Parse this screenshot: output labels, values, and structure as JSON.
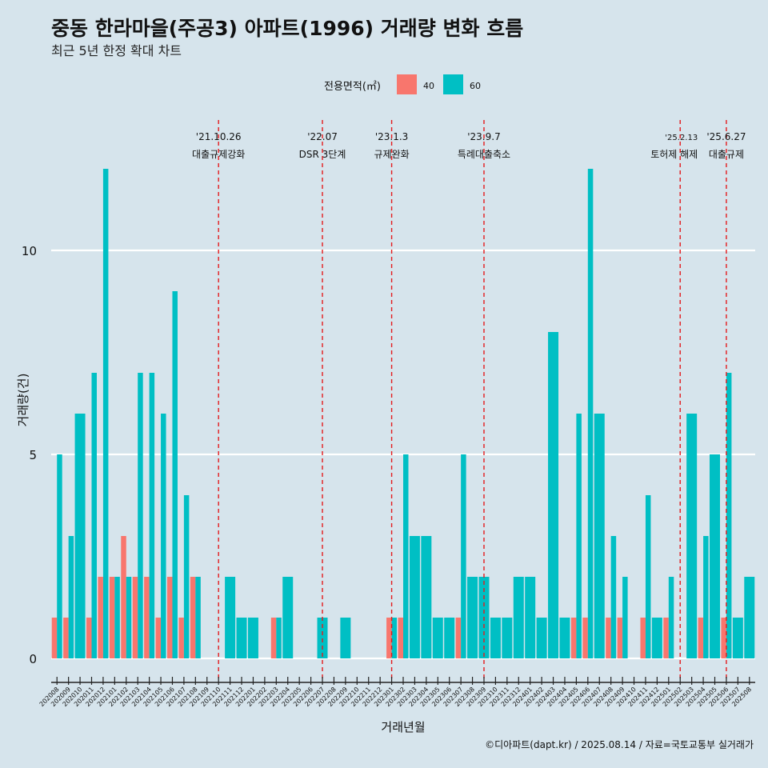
{
  "chart_data": {
    "type": "bar",
    "title": "중동 한라마을(주공3) 아파트(1996) 거래량 변화 흐름",
    "subtitle": "최근 5년 한정 확대 차트",
    "xlabel": "거래년월",
    "ylabel": "거래량(건)",
    "caption": "©디아파트(dapt.kr) / 2025.08.14 / 자료=국토교통부 실거래가",
    "legend": {
      "title": "전용면적(㎡)",
      "placement": "top",
      "entries": [
        "40",
        "60"
      ]
    },
    "colors": {
      "40": "#f8766d",
      "60": "#00bfc4",
      "background": "#d6e4ec",
      "event_line": "#e41a1c"
    },
    "grid": true,
    "ylim": [
      0,
      12
    ],
    "yticks": [
      0,
      5,
      10
    ],
    "categories": [
      "202008",
      "202009",
      "202010",
      "202011",
      "202012",
      "202101",
      "202102",
      "202103",
      "202104",
      "202105",
      "202106",
      "202107",
      "202108",
      "202109",
      "202110",
      "202111",
      "202112",
      "202201",
      "202202",
      "202203",
      "202204",
      "202205",
      "202206",
      "202207",
      "202208",
      "202209",
      "202210",
      "202211",
      "202212",
      "202301",
      "202302",
      "202303",
      "202304",
      "202305",
      "202306",
      "202307",
      "202308",
      "202309",
      "202310",
      "202311",
      "202312",
      "202401",
      "202402",
      "202403",
      "202404",
      "202405",
      "202406",
      "202407",
      "202408",
      "202409",
      "202410",
      "202411",
      "202412",
      "202501",
      "202502",
      "202503",
      "202504",
      "202505",
      "202506",
      "202507",
      "202508"
    ],
    "series": [
      {
        "name": "40",
        "values": [
          1,
          1,
          0,
          1,
          2,
          2,
          3,
          2,
          2,
          1,
          2,
          1,
          2,
          0,
          0,
          0,
          0,
          0,
          0,
          1,
          0,
          0,
          0,
          0,
          0,
          0,
          0,
          0,
          0,
          1,
          1,
          0,
          0,
          0,
          0,
          1,
          0,
          0,
          0,
          0,
          0,
          0,
          0,
          0,
          0,
          1,
          1,
          0,
          1,
          1,
          0,
          1,
          0,
          1,
          0,
          0,
          1,
          0,
          1,
          0,
          0
        ]
      },
      {
        "name": "60",
        "values": [
          5,
          3,
          6,
          7,
          12,
          2,
          2,
          7,
          7,
          6,
          9,
          4,
          2,
          0,
          0,
          2,
          1,
          1,
          0,
          1,
          2,
          0,
          0,
          1,
          0,
          1,
          0,
          0,
          0,
          1,
          5,
          3,
          3,
          1,
          1,
          5,
          2,
          2,
          1,
          1,
          2,
          2,
          1,
          8,
          1,
          6,
          12,
          6,
          3,
          2,
          0,
          4,
          1,
          2,
          0,
          6,
          3,
          5,
          7,
          1,
          2
        ]
      }
    ],
    "events": [
      {
        "date": "'21.10.26",
        "label": "대출규제강화",
        "at": "202110"
      },
      {
        "date": "'22.07",
        "label": "DSR 3단계",
        "at": "202207"
      },
      {
        "date": "'23.1.3",
        "label": "규제완화",
        "at": "202301"
      },
      {
        "date": "'23.9.7",
        "label": "특례대출축소",
        "at": "202309"
      },
      {
        "date": "'25.2.13",
        "label": "토허제 해제",
        "at": "202502"
      },
      {
        "date": "'25.6.27",
        "label": "대출규제",
        "at": "202506"
      }
    ]
  }
}
